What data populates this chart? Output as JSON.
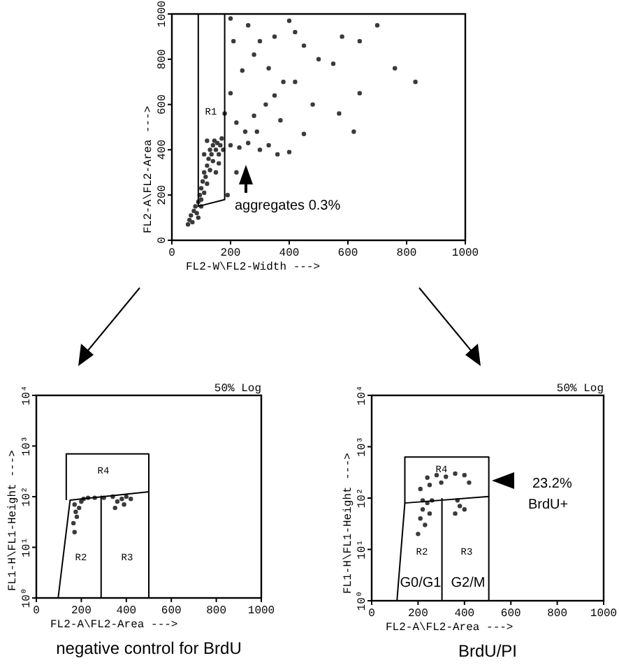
{
  "chart_data": [
    {
      "type": "scatter",
      "xlabel": "FL2-W\\FL2-Width --->",
      "ylabel": "FL2-A\\FL2-Area --->",
      "xlim": [
        0,
        1000
      ],
      "ylim": [
        0,
        1000
      ],
      "xticks": [
        0,
        200,
        400,
        600,
        800,
        1000
      ],
      "yticks": [
        0,
        200,
        400,
        600,
        800,
        1000
      ],
      "annotations": [
        "R1",
        "aggregates 0.3%"
      ],
      "series": [
        {
          "type": "scatter",
          "marker": "circle",
          "color": "#3a3a3a",
          "x": [
            55,
            60,
            65,
            70,
            75,
            80,
            85,
            90,
            95,
            100,
            100,
            105,
            110,
            110,
            115,
            120,
            120,
            125,
            130,
            130,
            135,
            140,
            140,
            145,
            150,
            155,
            160,
            165,
            170,
            175,
            120,
            110,
            150,
            160,
            100,
            90,
            200,
            230,
            260,
            300,
            330,
            360,
            400,
            250,
            220,
            280,
            320,
            350,
            380,
            200,
            240,
            280,
            300,
            350,
            420,
            450,
            500,
            550,
            580,
            640,
            700,
            760,
            830,
            620,
            570,
            480,
            420,
            260,
            400,
            220,
            190,
            210,
            330,
            450,
            370,
            290,
            180,
            200,
            640
          ],
          "values": [
            70,
            90,
            110,
            80,
            130,
            150,
            120,
            170,
            200,
            180,
            230,
            260,
            210,
            300,
            280,
            330,
            250,
            360,
            310,
            400,
            380,
            420,
            350,
            440,
            400,
            430,
            380,
            420,
            450,
            400,
            440,
            380,
            300,
            340,
            150,
            100,
            420,
            410,
            430,
            400,
            420,
            380,
            390,
            480,
            520,
            550,
            600,
            640,
            700,
            650,
            750,
            820,
            880,
            900,
            920,
            860,
            800,
            780,
            900,
            880,
            950,
            760,
            700,
            480,
            560,
            600,
            700,
            950,
            970,
            300,
            200,
            880,
            760,
            470,
            530,
            480,
            560,
            980,
            650
          ]
        },
        {
          "type": "line",
          "color": "#000000",
          "x": [
            90,
            90,
            180,
            180
          ],
          "values": [
            1000,
            150,
            180,
            1000
          ]
        }
      ]
    },
    {
      "type": "scatter",
      "title": "negative control for BrdU",
      "subtitle": "50% Log",
      "xlabel": "FL2-A\\FL2-Area --->",
      "ylabel": "FL1-H\\FL1-Height --->",
      "xlim": [
        0,
        1000
      ],
      "ylim": [
        1,
        10000
      ],
      "log": "y",
      "xticks": [
        0,
        200,
        400,
        600,
        800,
        1000
      ],
      "yticks": [
        {
          "value": 1,
          "label": "10⁰"
        },
        {
          "value": 10,
          "label": "10¹"
        },
        {
          "value": 100,
          "label": "10²"
        },
        {
          "value": 1000,
          "label": "10³"
        },
        {
          "value": 10000,
          "label": "10⁴"
        }
      ],
      "annotations": [
        "R4",
        "R2",
        "R3"
      ],
      "series": [
        {
          "type": "scatter",
          "marker": "circle",
          "color": "#3a3a3a",
          "x": [
            165,
            175,
            170,
            180,
            190,
            200,
            170,
            210,
            230,
            260,
            300,
            340,
            360,
            380,
            400,
            420,
            350,
            390
          ],
          "values": [
            30,
            50,
            70,
            40,
            60,
            80,
            20,
            90,
            95,
            95,
            95,
            100,
            80,
            90,
            100,
            90,
            60,
            70
          ]
        },
        {
          "type": "line",
          "color": "#000000",
          "x": [
            133,
            133,
            500,
            500
          ],
          "values": [
            85,
            700,
            700,
            125
          ]
        },
        {
          "type": "line",
          "color": "#000000",
          "x": [
            97,
            150,
            500,
            500,
            288,
            288
          ],
          "values": [
            1,
            85,
            125,
            1,
            1,
            105
          ]
        }
      ]
    },
    {
      "type": "scatter",
      "title": "BrdU/PI",
      "subtitle": "50% Log",
      "xlabel": "FL2-A\\FL2-Area --->",
      "ylabel": "FL1-H\\FL1-Height --->",
      "xlim": [
        0,
        1000
      ],
      "ylim": [
        1,
        10000
      ],
      "log": "y",
      "xticks": [
        0,
        200,
        400,
        600,
        800,
        1000
      ],
      "yticks": [
        {
          "value": 1,
          "label": "10⁰"
        },
        {
          "value": 10,
          "label": "10¹"
        },
        {
          "value": 100,
          "label": "10²"
        },
        {
          "value": 1000,
          "label": "10³"
        },
        {
          "value": 10000,
          "label": "10⁴"
        }
      ],
      "annotations": [
        "R4",
        "R2",
        "R3",
        "G0/G1",
        "G2/M",
        "23.2%",
        "BrdU+"
      ],
      "series": [
        {
          "type": "scatter",
          "marker": "circle",
          "color": "#3a3a3a",
          "x": [
            200,
            210,
            220,
            230,
            240,
            250,
            220,
            260,
            210,
            240,
            280,
            320,
            360,
            400,
            420,
            300,
            250,
            360,
            380,
            400,
            370
          ],
          "values": [
            20,
            40,
            60,
            30,
            80,
            50,
            90,
            90,
            150,
            250,
            280,
            260,
            300,
            280,
            200,
            200,
            180,
            50,
            70,
            60,
            90
          ]
        },
        {
          "type": "line",
          "color": "#000000",
          "x": [
            143,
            143,
            505,
            505
          ],
          "values": [
            80,
            630,
            630,
            107
          ]
        },
        {
          "type": "line",
          "color": "#000000",
          "x": [
            109,
            143,
            505,
            505,
            303,
            303
          ],
          "values": [
            1,
            80,
            107,
            1,
            1,
            100
          ]
        }
      ]
    }
  ]
}
